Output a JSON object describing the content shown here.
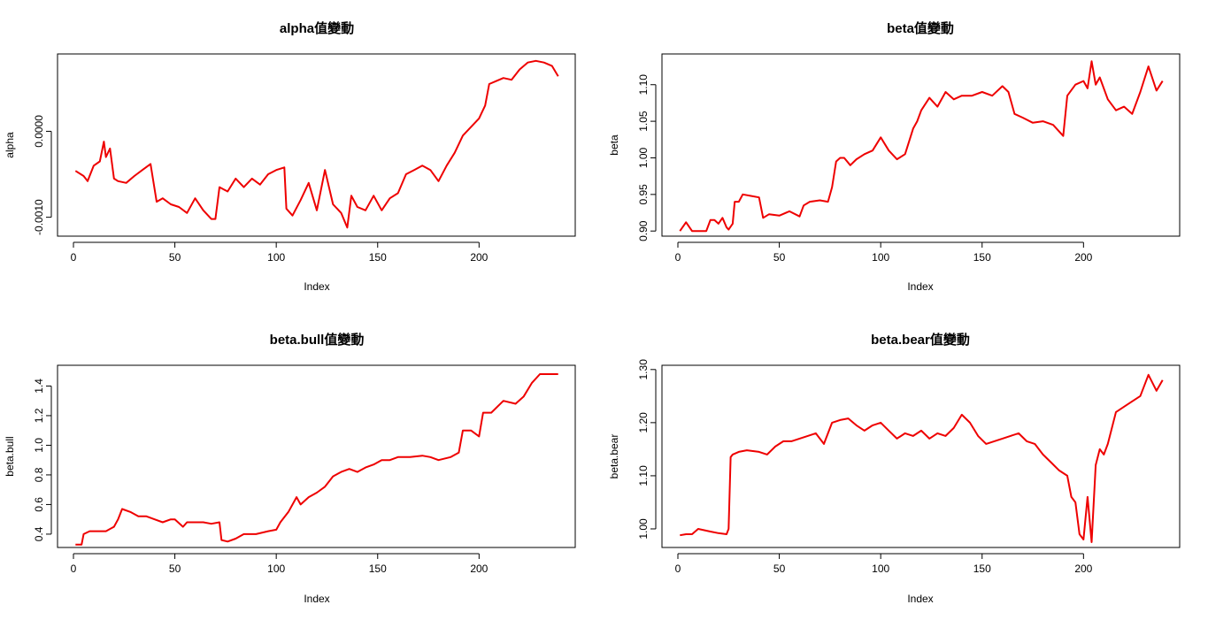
{
  "line_color": "#ee0000",
  "chart_data": [
    {
      "type": "line",
      "title": "alpha值變動",
      "xlabel": "Index",
      "ylabel": "alpha",
      "xlim": [
        0,
        240
      ],
      "ylim": [
        -0.00122,
        0.0009
      ],
      "xticks": [
        0,
        50,
        100,
        150,
        200
      ],
      "xtick_labels": [
        "0",
        "50",
        "100",
        "150",
        "200"
      ],
      "yticks": [
        -0.001,
        0.0
      ],
      "ytick_labels": [
        "-0.0010",
        "0.0000"
      ],
      "grid": false,
      "series": [
        {
          "x": [
            1,
            5,
            7,
            10,
            13,
            15,
            16,
            18,
            20,
            22,
            26,
            30,
            34,
            38,
            41,
            44,
            48,
            52,
            56,
            60,
            64,
            68,
            70,
            72,
            76,
            80,
            84,
            88,
            92,
            96,
            100,
            104,
            105,
            108,
            112,
            116,
            120,
            124,
            128,
            132,
            135,
            137,
            140,
            144,
            148,
            152,
            156,
            160,
            164,
            168,
            172,
            176,
            180,
            184,
            188,
            192,
            196,
            200,
            203,
            205,
            208,
            212,
            216,
            220,
            224,
            228,
            232,
            236,
            239
          ],
          "y": [
            -0.00046,
            -0.00052,
            -0.00058,
            -0.0004,
            -0.00035,
            -0.00012,
            -0.0003,
            -0.0002,
            -0.00055,
            -0.00058,
            -0.0006,
            -0.00052,
            -0.00045,
            -0.00038,
            -0.00082,
            -0.00078,
            -0.00085,
            -0.00088,
            -0.00095,
            -0.00078,
            -0.00092,
            -0.00102,
            -0.00102,
            -0.00065,
            -0.0007,
            -0.00055,
            -0.00065,
            -0.00055,
            -0.00062,
            -0.0005,
            -0.00045,
            -0.00042,
            -0.0009,
            -0.00098,
            -0.0008,
            -0.0006,
            -0.00092,
            -0.00045,
            -0.00085,
            -0.00095,
            -0.00112,
            -0.00075,
            -0.00088,
            -0.00092,
            -0.00075,
            -0.00092,
            -0.00078,
            -0.00072,
            -0.0005,
            -0.00045,
            -0.0004,
            -0.00045,
            -0.00058,
            -0.0004,
            -0.00025,
            -5e-05,
            5e-05,
            0.00015,
            0.0003,
            0.00055,
            0.00058,
            0.00062,
            0.0006,
            0.00072,
            0.0008,
            0.00082,
            0.0008,
            0.00076,
            0.00064
          ]
        }
      ]
    },
    {
      "type": "line",
      "title": "beta值變動",
      "xlabel": "Index",
      "ylabel": "beta",
      "xlim": [
        0,
        240
      ],
      "ylim": [
        0.893,
        1.142
      ],
      "xticks": [
        0,
        50,
        100,
        150,
        200
      ],
      "xtick_labels": [
        "0",
        "50",
        "100",
        "150",
        "200"
      ],
      "yticks": [
        0.9,
        0.95,
        1.0,
        1.05,
        1.1
      ],
      "ytick_labels": [
        "0.90",
        "0.95",
        "1.00",
        "1.05",
        "1.10"
      ],
      "grid": false,
      "series": [
        {
          "x": [
            1,
            4,
            7,
            10,
            14,
            16,
            18,
            20,
            22,
            24,
            25,
            27,
            28,
            30,
            32,
            36,
            40,
            42,
            45,
            50,
            55,
            60,
            62,
            65,
            70,
            74,
            76,
            78,
            80,
            82,
            85,
            88,
            92,
            96,
            100,
            104,
            108,
            112,
            116,
            118,
            120,
            124,
            128,
            132,
            136,
            140,
            145,
            150,
            155,
            160,
            163,
            166,
            170,
            175,
            180,
            185,
            190,
            192,
            196,
            200,
            202,
            204,
            206,
            208,
            212,
            216,
            220,
            224,
            228,
            232,
            236,
            239
          ],
          "y": [
            0.9,
            0.912,
            0.9,
            0.9,
            0.9,
            0.915,
            0.915,
            0.91,
            0.918,
            0.905,
            0.902,
            0.91,
            0.94,
            0.94,
            0.95,
            0.948,
            0.946,
            0.918,
            0.923,
            0.921,
            0.927,
            0.92,
            0.935,
            0.94,
            0.942,
            0.94,
            0.96,
            0.995,
            1.0,
            1.0,
            0.99,
            0.998,
            1.005,
            1.01,
            1.028,
            1.01,
            0.998,
            1.005,
            1.04,
            1.05,
            1.065,
            1.082,
            1.07,
            1.09,
            1.08,
            1.085,
            1.085,
            1.09,
            1.085,
            1.098,
            1.09,
            1.06,
            1.055,
            1.048,
            1.05,
            1.045,
            1.03,
            1.085,
            1.1,
            1.105,
            1.095,
            1.132,
            1.1,
            1.11,
            1.08,
            1.065,
            1.07,
            1.06,
            1.09,
            1.125,
            1.092,
            1.105
          ]
        }
      ]
    },
    {
      "type": "line",
      "title": "beta.bull值變動",
      "xlabel": "Index",
      "ylabel": "beta.bull",
      "xlim": [
        0,
        240
      ],
      "ylim": [
        0.31,
        1.54
      ],
      "xticks": [
        0,
        50,
        100,
        150,
        200
      ],
      "xtick_labels": [
        "0",
        "50",
        "100",
        "150",
        "200"
      ],
      "yticks": [
        0.4,
        0.6,
        0.8,
        1.0,
        1.2,
        1.4
      ],
      "ytick_labels": [
        "0.4",
        "0.6",
        "0.8",
        "1.0",
        "1.2",
        "1.4"
      ],
      "grid": false,
      "series": [
        {
          "x": [
            1,
            4,
            5,
            8,
            12,
            16,
            20,
            22,
            24,
            28,
            32,
            36,
            40,
            44,
            48,
            50,
            54,
            56,
            60,
            64,
            68,
            72,
            73,
            76,
            80,
            84,
            90,
            96,
            100,
            102,
            106,
            110,
            112,
            116,
            120,
            124,
            128,
            132,
            136,
            140,
            144,
            148,
            152,
            156,
            160,
            166,
            172,
            176,
            180,
            186,
            190,
            192,
            196,
            200,
            202,
            206,
            212,
            218,
            222,
            226,
            230,
            234,
            239
          ],
          "y": [
            0.33,
            0.33,
            0.4,
            0.42,
            0.42,
            0.42,
            0.45,
            0.5,
            0.57,
            0.55,
            0.52,
            0.52,
            0.5,
            0.48,
            0.5,
            0.5,
            0.45,
            0.48,
            0.48,
            0.48,
            0.47,
            0.48,
            0.36,
            0.35,
            0.37,
            0.4,
            0.4,
            0.42,
            0.43,
            0.48,
            0.55,
            0.65,
            0.6,
            0.65,
            0.68,
            0.72,
            0.79,
            0.82,
            0.84,
            0.82,
            0.85,
            0.87,
            0.9,
            0.9,
            0.92,
            0.92,
            0.93,
            0.92,
            0.9,
            0.92,
            0.95,
            1.1,
            1.1,
            1.06,
            1.22,
            1.22,
            1.3,
            1.28,
            1.33,
            1.42,
            1.48,
            1.48,
            1.48
          ]
        }
      ]
    },
    {
      "type": "line",
      "title": "beta.bear值變動",
      "xlabel": "Index",
      "ylabel": "beta.bear",
      "xlim": [
        0,
        240
      ],
      "ylim": [
        0.965,
        1.308
      ],
      "xticks": [
        0,
        50,
        100,
        150,
        200
      ],
      "xtick_labels": [
        "0",
        "50",
        "100",
        "150",
        "200"
      ],
      "yticks": [
        1.0,
        1.1,
        1.2,
        1.3
      ],
      "ytick_labels": [
        "1.00",
        "1.10",
        "1.20",
        "1.30"
      ],
      "grid": false,
      "series": [
        {
          "x": [
            1,
            4,
            7,
            10,
            16,
            20,
            24,
            25,
            26,
            27,
            30,
            34,
            40,
            44,
            48,
            52,
            56,
            60,
            64,
            68,
            72,
            76,
            80,
            84,
            88,
            92,
            96,
            100,
            104,
            108,
            112,
            116,
            120,
            124,
            128,
            132,
            136,
            140,
            144,
            148,
            152,
            156,
            160,
            164,
            168,
            172,
            176,
            180,
            184,
            188,
            192,
            194,
            196,
            198,
            200,
            202,
            204,
            206,
            208,
            210,
            212,
            216,
            220,
            224,
            228,
            232,
            236,
            239
          ],
          "y": [
            0.988,
            0.99,
            0.99,
            1.0,
            0.995,
            0.992,
            0.99,
            1.0,
            1.135,
            1.14,
            1.145,
            1.148,
            1.145,
            1.14,
            1.155,
            1.165,
            1.165,
            1.17,
            1.175,
            1.18,
            1.16,
            1.2,
            1.205,
            1.208,
            1.195,
            1.185,
            1.195,
            1.2,
            1.185,
            1.17,
            1.18,
            1.175,
            1.185,
            1.17,
            1.18,
            1.175,
            1.19,
            1.215,
            1.2,
            1.175,
            1.16,
            1.165,
            1.17,
            1.175,
            1.18,
            1.165,
            1.16,
            1.14,
            1.125,
            1.11,
            1.1,
            1.06,
            1.05,
            0.99,
            0.98,
            1.06,
            0.975,
            1.12,
            1.15,
            1.14,
            1.16,
            1.22,
            1.23,
            1.24,
            1.25,
            1.29,
            1.26,
            1.28
          ]
        }
      ]
    }
  ]
}
